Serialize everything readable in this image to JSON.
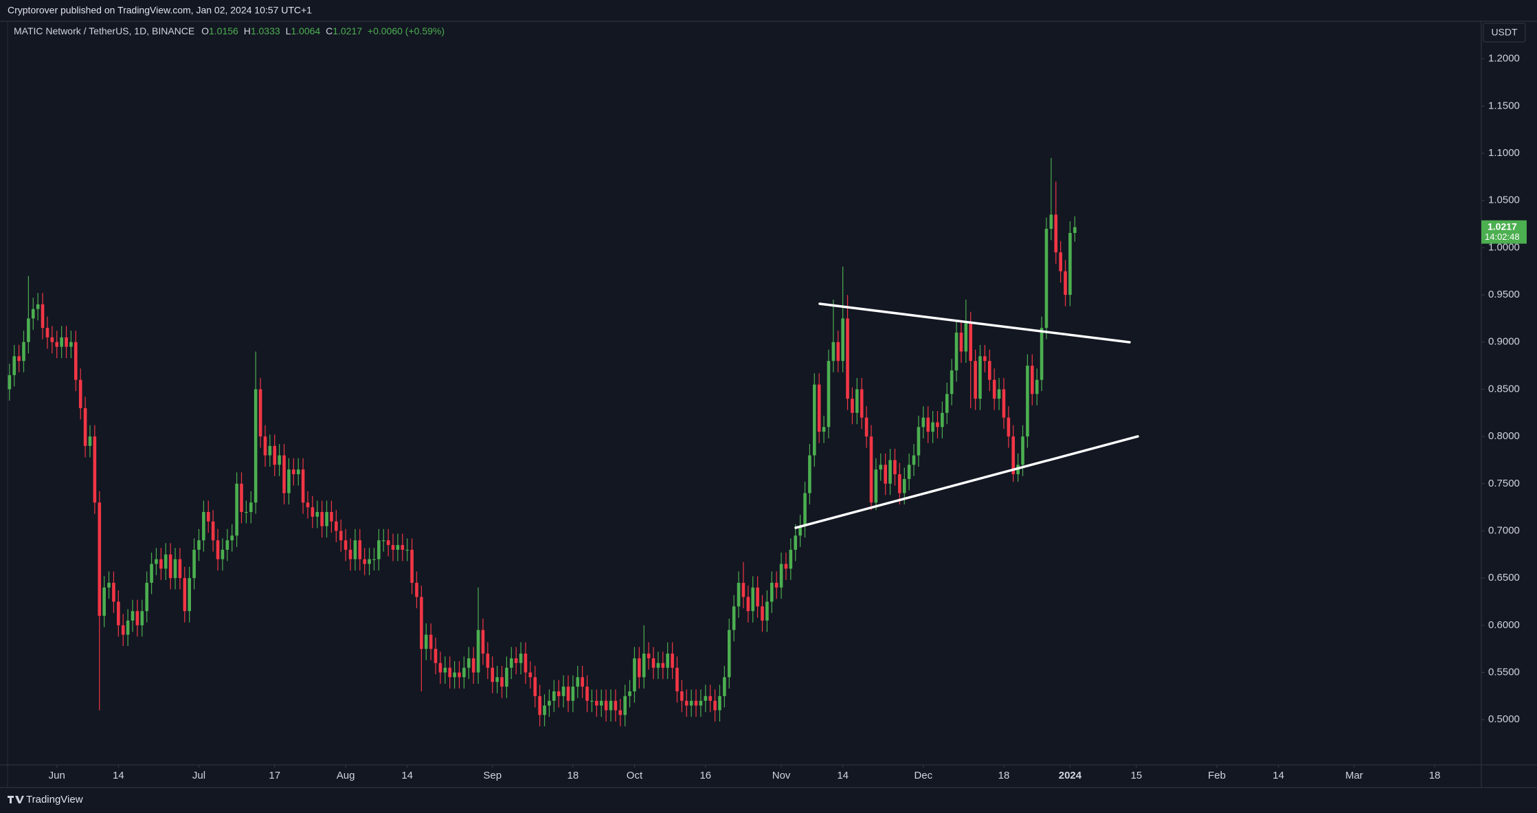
{
  "header": {
    "publisher": "Cryptorover published on TradingView.com, Jan 02, 2024 10:57 UTC+1"
  },
  "chart_data": {
    "type": "candlestick",
    "title": "MATIC Network / TetherUS, 1D, BINANCE",
    "legend_labels": [
      "O",
      "H",
      "L",
      "C"
    ],
    "change_label": "+0.0060 (+0.59%)",
    "currency": "USDT",
    "countdown": "14:02:48",
    "up_color": "#4caf50",
    "down_color": "#f23645",
    "grid": false,
    "open": [
      0.85,
      0.865,
      0.885,
      0.88,
      0.9,
      0.925,
      0.935,
      0.94,
      0.915,
      0.905,
      0.9,
      0.895,
      0.905,
      0.895,
      0.9,
      0.86,
      0.83,
      0.79,
      0.8,
      0.73,
      0.61,
      0.64,
      0.645,
      0.625,
      0.6,
      0.59,
      0.605,
      0.615,
      0.6,
      0.615,
      0.645,
      0.665,
      0.67,
      0.66,
      0.675,
      0.65,
      0.67,
      0.65,
      0.615,
      0.65,
      0.68,
      0.69,
      0.72,
      0.71,
      0.69,
      0.67,
      0.68,
      0.69,
      0.695,
      0.75,
      0.72,
      0.72,
      0.73,
      0.85,
      0.8,
      0.78,
      0.79,
      0.77,
      0.78,
      0.74,
      0.765,
      0.76,
      0.765,
      0.73,
      0.725,
      0.715,
      0.72,
      0.705,
      0.72,
      0.71,
      0.7,
      0.69,
      0.68,
      0.67,
      0.69,
      0.67,
      0.665,
      0.67,
      0.67,
      0.69,
      0.69,
      0.685,
      0.68,
      0.685,
      0.68,
      0.68,
      0.645,
      0.63,
      0.575,
      0.59,
      0.575,
      0.56,
      0.55,
      0.555,
      0.545,
      0.55,
      0.545,
      0.555,
      0.565,
      0.55,
      0.595,
      0.57,
      0.555,
      0.54,
      0.545,
      0.535,
      0.555,
      0.565,
      0.56,
      0.57,
      0.55,
      0.545,
      0.525,
      0.505,
      0.515,
      0.52,
      0.53,
      0.525,
      0.535,
      0.52,
      0.535,
      0.545,
      0.535,
      0.52,
      0.52,
      0.515,
      0.52,
      0.51,
      0.52,
      0.51,
      0.505,
      0.525,
      0.53,
      0.565,
      0.545,
      0.57,
      0.565,
      0.555,
      0.56,
      0.555,
      0.57,
      0.555,
      0.53,
      0.52,
      0.515,
      0.52,
      0.515,
      0.52,
      0.525,
      0.52,
      0.51,
      0.525,
      0.545,
      0.595,
      0.62,
      0.645,
      0.63,
      0.615,
      0.64,
      0.62,
      0.605,
      0.625,
      0.645,
      0.64,
      0.665,
      0.66,
      0.68,
      0.695,
      0.705,
      0.74,
      0.78,
      0.855,
      0.805,
      0.81,
      0.88,
      0.9,
      0.88,
      0.925,
      0.84,
      0.825,
      0.85,
      0.82,
      0.8,
      0.73,
      0.765,
      0.77,
      0.75,
      0.775,
      0.76,
      0.74,
      0.755,
      0.77,
      0.78,
      0.81,
      0.82,
      0.805,
      0.815,
      0.81,
      0.825,
      0.845,
      0.87,
      0.91,
      0.89,
      0.92,
      0.88,
      0.84,
      0.885,
      0.88,
      0.86,
      0.84,
      0.85,
      0.82,
      0.8,
      0.76,
      0.77,
      0.8,
      0.875,
      0.845,
      0.86,
      0.915,
      1.02,
      1.035,
      0.995,
      0.975,
      0.95,
      1.0156
    ],
    "high": [
      0.877,
      0.897,
      0.897,
      0.912,
      0.97,
      0.947,
      0.952,
      0.952,
      0.927,
      0.917,
      0.912,
      0.917,
      0.917,
      0.912,
      0.912,
      0.872,
      0.842,
      0.812,
      0.812,
      0.742,
      0.652,
      0.657,
      0.657,
      0.637,
      0.612,
      0.617,
      0.627,
      0.627,
      0.627,
      0.657,
      0.677,
      0.682,
      0.682,
      0.687,
      0.687,
      0.682,
      0.682,
      0.662,
      0.662,
      0.692,
      0.702,
      0.732,
      0.732,
      0.722,
      0.702,
      0.692,
      0.702,
      0.707,
      0.762,
      0.762,
      0.732,
      0.742,
      0.89,
      0.862,
      0.812,
      0.802,
      0.802,
      0.792,
      0.792,
      0.777,
      0.777,
      0.777,
      0.777,
      0.742,
      0.737,
      0.732,
      0.732,
      0.732,
      0.732,
      0.722,
      0.712,
      0.702,
      0.692,
      0.702,
      0.702,
      0.682,
      0.682,
      0.682,
      0.702,
      0.702,
      0.702,
      0.697,
      0.697,
      0.697,
      0.692,
      0.692,
      0.657,
      0.642,
      0.602,
      0.602,
      0.587,
      0.572,
      0.567,
      0.567,
      0.562,
      0.562,
      0.567,
      0.577,
      0.577,
      0.64,
      0.607,
      0.582,
      0.567,
      0.557,
      0.557,
      0.567,
      0.577,
      0.577,
      0.582,
      0.582,
      0.562,
      0.557,
      0.537,
      0.527,
      0.532,
      0.542,
      0.542,
      0.547,
      0.547,
      0.547,
      0.557,
      0.557,
      0.547,
      0.532,
      0.532,
      0.532,
      0.532,
      0.532,
      0.532,
      0.522,
      0.537,
      0.542,
      0.577,
      0.577,
      0.6,
      0.582,
      0.577,
      0.572,
      0.572,
      0.582,
      0.582,
      0.567,
      0.542,
      0.532,
      0.532,
      0.532,
      0.532,
      0.537,
      0.537,
      0.532,
      0.537,
      0.557,
      0.607,
      0.632,
      0.657,
      0.667,
      0.642,
      0.652,
      0.652,
      0.632,
      0.637,
      0.657,
      0.657,
      0.677,
      0.677,
      0.692,
      0.707,
      0.717,
      0.752,
      0.792,
      0.867,
      0.867,
      0.822,
      0.892,
      0.945,
      0.912,
      0.98,
      0.95,
      0.852,
      0.862,
      0.862,
      0.832,
      0.812,
      0.777,
      0.782,
      0.782,
      0.787,
      0.787,
      0.772,
      0.767,
      0.782,
      0.792,
      0.822,
      0.832,
      0.832,
      0.827,
      0.827,
      0.837,
      0.857,
      0.882,
      0.922,
      0.922,
      0.945,
      0.932,
      0.892,
      0.897,
      0.897,
      0.892,
      0.872,
      0.862,
      0.862,
      0.832,
      0.812,
      0.782,
      0.812,
      0.887,
      0.887,
      0.872,
      0.927,
      1.032,
      1.095,
      1.07,
      1.007,
      0.987,
      1.028,
      1.0333
    ],
    "low": [
      0.838,
      0.853,
      0.868,
      0.868,
      0.888,
      0.913,
      0.923,
      0.903,
      0.893,
      0.888,
      0.883,
      0.883,
      0.883,
      0.883,
      0.848,
      0.818,
      0.778,
      0.778,
      0.718,
      0.51,
      0.598,
      0.628,
      0.613,
      0.588,
      0.578,
      0.578,
      0.593,
      0.588,
      0.588,
      0.603,
      0.633,
      0.653,
      0.648,
      0.648,
      0.638,
      0.638,
      0.638,
      0.603,
      0.603,
      0.638,
      0.668,
      0.678,
      0.698,
      0.678,
      0.658,
      0.658,
      0.668,
      0.678,
      0.683,
      0.708,
      0.708,
      0.708,
      0.718,
      0.788,
      0.768,
      0.768,
      0.758,
      0.758,
      0.728,
      0.728,
      0.748,
      0.748,
      0.718,
      0.713,
      0.703,
      0.703,
      0.693,
      0.693,
      0.698,
      0.688,
      0.678,
      0.668,
      0.658,
      0.658,
      0.658,
      0.653,
      0.653,
      0.658,
      0.658,
      0.678,
      0.673,
      0.668,
      0.668,
      0.668,
      0.668,
      0.633,
      0.618,
      0.53,
      0.563,
      0.563,
      0.548,
      0.538,
      0.538,
      0.533,
      0.533,
      0.533,
      0.533,
      0.543,
      0.538,
      0.538,
      0.558,
      0.543,
      0.528,
      0.528,
      0.523,
      0.523,
      0.543,
      0.548,
      0.548,
      0.538,
      0.533,
      0.513,
      0.493,
      0.493,
      0.503,
      0.508,
      0.513,
      0.513,
      0.508,
      0.508,
      0.523,
      0.523,
      0.508,
      0.508,
      0.503,
      0.503,
      0.498,
      0.498,
      0.498,
      0.493,
      0.493,
      0.513,
      0.518,
      0.533,
      0.533,
      0.553,
      0.543,
      0.543,
      0.543,
      0.543,
      0.543,
      0.518,
      0.508,
      0.503,
      0.503,
      0.503,
      0.503,
      0.508,
      0.508,
      0.498,
      0.498,
      0.513,
      0.533,
      0.583,
      0.608,
      0.618,
      0.603,
      0.603,
      0.608,
      0.593,
      0.593,
      0.613,
      0.628,
      0.628,
      0.648,
      0.648,
      0.668,
      0.683,
      0.693,
      0.728,
      0.768,
      0.793,
      0.793,
      0.798,
      0.868,
      0.868,
      0.868,
      0.828,
      0.813,
      0.813,
      0.808,
      0.788,
      0.722,
      0.722,
      0.753,
      0.738,
      0.738,
      0.748,
      0.728,
      0.728,
      0.743,
      0.758,
      0.768,
      0.798,
      0.793,
      0.793,
      0.798,
      0.798,
      0.813,
      0.833,
      0.858,
      0.878,
      0.878,
      0.83,
      0.828,
      0.828,
      0.868,
      0.848,
      0.828,
      0.828,
      0.808,
      0.788,
      0.752,
      0.752,
      0.758,
      0.788,
      0.833,
      0.833,
      0.848,
      0.903,
      1.008,
      0.983,
      0.963,
      0.938,
      0.938,
      1.0064
    ],
    "close": [
      0.865,
      0.885,
      0.88,
      0.9,
      0.925,
      0.935,
      0.94,
      0.915,
      0.905,
      0.9,
      0.895,
      0.905,
      0.895,
      0.9,
      0.86,
      0.83,
      0.79,
      0.8,
      0.73,
      0.61,
      0.64,
      0.645,
      0.625,
      0.6,
      0.59,
      0.605,
      0.615,
      0.6,
      0.615,
      0.645,
      0.665,
      0.67,
      0.66,
      0.675,
      0.65,
      0.67,
      0.65,
      0.615,
      0.65,
      0.68,
      0.69,
      0.72,
      0.71,
      0.69,
      0.67,
      0.68,
      0.69,
      0.695,
      0.75,
      0.72,
      0.72,
      0.73,
      0.85,
      0.8,
      0.78,
      0.79,
      0.77,
      0.78,
      0.74,
      0.765,
      0.76,
      0.765,
      0.73,
      0.725,
      0.715,
      0.72,
      0.705,
      0.72,
      0.71,
      0.7,
      0.69,
      0.68,
      0.67,
      0.69,
      0.67,
      0.665,
      0.67,
      0.67,
      0.69,
      0.69,
      0.685,
      0.68,
      0.685,
      0.68,
      0.68,
      0.645,
      0.63,
      0.575,
      0.59,
      0.575,
      0.56,
      0.55,
      0.555,
      0.545,
      0.55,
      0.545,
      0.555,
      0.565,
      0.55,
      0.595,
      0.57,
      0.555,
      0.54,
      0.545,
      0.535,
      0.555,
      0.565,
      0.56,
      0.57,
      0.55,
      0.545,
      0.525,
      0.505,
      0.515,
      0.52,
      0.53,
      0.525,
      0.535,
      0.52,
      0.535,
      0.545,
      0.535,
      0.52,
      0.52,
      0.515,
      0.52,
      0.51,
      0.52,
      0.51,
      0.505,
      0.525,
      0.53,
      0.565,
      0.545,
      0.57,
      0.565,
      0.555,
      0.56,
      0.555,
      0.57,
      0.555,
      0.53,
      0.52,
      0.515,
      0.52,
      0.515,
      0.52,
      0.525,
      0.52,
      0.51,
      0.525,
      0.545,
      0.595,
      0.62,
      0.645,
      0.63,
      0.615,
      0.64,
      0.62,
      0.605,
      0.625,
      0.645,
      0.64,
      0.665,
      0.66,
      0.68,
      0.695,
      0.705,
      0.74,
      0.78,
      0.855,
      0.805,
      0.81,
      0.88,
      0.9,
      0.88,
      0.925,
      0.84,
      0.825,
      0.85,
      0.82,
      0.8,
      0.73,
      0.765,
      0.77,
      0.75,
      0.775,
      0.76,
      0.74,
      0.755,
      0.77,
      0.78,
      0.81,
      0.82,
      0.805,
      0.815,
      0.81,
      0.825,
      0.845,
      0.87,
      0.91,
      0.89,
      0.92,
      0.88,
      0.84,
      0.885,
      0.88,
      0.86,
      0.84,
      0.85,
      0.82,
      0.8,
      0.76,
      0.77,
      0.8,
      0.875,
      0.845,
      0.86,
      0.915,
      1.02,
      1.035,
      0.995,
      0.975,
      0.95,
      1.0156,
      1.0217
    ],
    "xlim": [
      -0.41,
      310.86
    ],
    "xticks": [
      {
        "value": 10,
        "label": "Jun"
      },
      {
        "value": 23,
        "label": "14"
      },
      {
        "value": 40,
        "label": "Jul"
      },
      {
        "value": 56,
        "label": "17"
      },
      {
        "value": 71,
        "label": "Aug"
      },
      {
        "value": 84,
        "label": "14"
      },
      {
        "value": 102,
        "label": "Sep"
      },
      {
        "value": 119,
        "label": "18"
      },
      {
        "value": 132,
        "label": "Oct"
      },
      {
        "value": 147,
        "label": "16"
      },
      {
        "value": 163,
        "label": "Nov"
      },
      {
        "value": 176,
        "label": "14"
      },
      {
        "value": 193,
        "label": "Dec"
      },
      {
        "value": 210,
        "label": "18"
      },
      {
        "value": 224,
        "label": "2024"
      },
      {
        "value": 238,
        "label": "15"
      },
      {
        "value": 255,
        "label": "Feb"
      },
      {
        "value": 268,
        "label": "14"
      },
      {
        "value": 284,
        "label": "Mar"
      },
      {
        "value": 301,
        "label": "18"
      }
    ],
    "ylim": [
      0.4521,
      1.2398
    ],
    "yticks": [
      {
        "value": 0.5,
        "label": "0.5000"
      },
      {
        "value": 0.55,
        "label": "0.5500"
      },
      {
        "value": 0.6,
        "label": "0.6000"
      },
      {
        "value": 0.65,
        "label": "0.6500"
      },
      {
        "value": 0.7,
        "label": "0.7000"
      },
      {
        "value": 0.75,
        "label": "0.7500"
      },
      {
        "value": 0.8,
        "label": "0.8000"
      },
      {
        "value": 0.85,
        "label": "0.8500"
      },
      {
        "value": 0.9,
        "label": "0.9000"
      },
      {
        "value": 0.95,
        "label": "0.9500"
      },
      {
        "value": 1.0,
        "label": "1.0000"
      },
      {
        "value": 1.05,
        "label": "1.0500"
      },
      {
        "value": 1.1,
        "label": "1.1000"
      },
      {
        "value": 1.15,
        "label": "1.1500"
      },
      {
        "value": 1.2,
        "label": "1.2000"
      }
    ]
  },
  "footer": {
    "brand": "TradingView"
  }
}
